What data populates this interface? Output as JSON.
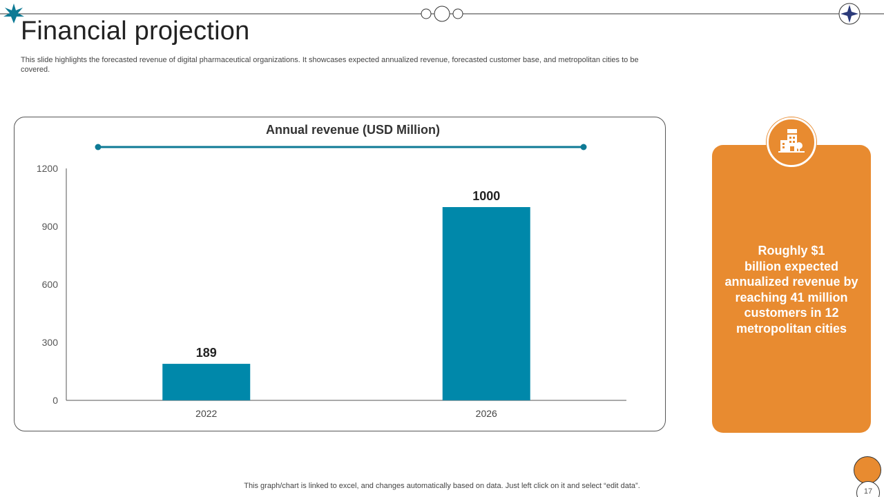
{
  "slide": {
    "title": "Financial projection",
    "subtitle": "This slide highlights the forecasted revenue of digital pharmaceutical organizations. It showcases expected annualized revenue, forecasted customer base, and metropolitan cities to be covered.",
    "footer_note": "This graph/chart is linked to excel, and changes automatically based on data. Just left click on it and select “edit data”.",
    "page_number": "17"
  },
  "callout": {
    "icon": "building-icon",
    "text": "Roughly $1\nbillion expected\nannualized revenue by\nreaching 41 million\ncustomers in 12\nmetropolitan cities"
  },
  "colors": {
    "bar": "#0088aa",
    "accent_teal": "#0e7a95",
    "accent_orange": "#e88b30",
    "navy": "#2b3a7a"
  },
  "chart_data": {
    "type": "bar",
    "title": "Annual revenue (USD Million)",
    "categories": [
      "2022",
      "2026"
    ],
    "values": [
      189,
      1000
    ],
    "data_labels": [
      "189",
      "1000"
    ],
    "y_ticks": [
      "0",
      "300",
      "600",
      "900",
      "1200"
    ],
    "ylim": [
      0,
      1200
    ],
    "xlabel": "",
    "ylabel": "",
    "grid": false
  }
}
